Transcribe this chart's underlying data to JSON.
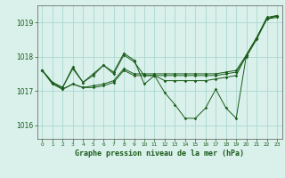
{
  "title": "Graphe pression niveau de la mer (hPa)",
  "background_color": "#daf0eb",
  "grid_color": "#aad8d0",
  "line_color": "#1a5c1a",
  "xlim": [
    -0.5,
    23.5
  ],
  "ylim": [
    1015.6,
    1019.5
  ],
  "yticks": [
    1016,
    1017,
    1018,
    1019
  ],
  "xticks": [
    0,
    1,
    2,
    3,
    4,
    5,
    6,
    7,
    8,
    9,
    10,
    11,
    12,
    13,
    14,
    15,
    16,
    17,
    18,
    19,
    20,
    21,
    22,
    23
  ],
  "lines": [
    {
      "x": [
        0,
        1,
        2,
        3,
        4,
        5,
        6,
        7,
        8,
        9,
        10,
        11,
        12,
        13,
        14,
        15,
        16,
        17,
        18,
        19,
        20,
        21,
        22,
        23
      ],
      "y": [
        1017.6,
        1017.25,
        1017.1,
        1017.65,
        1017.25,
        1017.45,
        1017.75,
        1017.5,
        1018.05,
        1017.85,
        1017.45,
        1017.45,
        1017.3,
        1017.3,
        1017.3,
        1017.3,
        1017.3,
        1017.35,
        1017.4,
        1017.45,
        1018.05,
        1018.55,
        1019.1,
        1019.2
      ]
    },
    {
      "x": [
        0,
        1,
        2,
        3,
        4,
        5,
        6,
        7,
        8,
        9,
        10,
        11,
        12,
        13,
        14,
        15,
        16,
        17,
        18,
        19,
        20,
        21,
        22,
        23
      ],
      "y": [
        1017.6,
        1017.25,
        1017.1,
        1017.7,
        1017.25,
        1017.5,
        1017.75,
        1017.55,
        1018.1,
        1017.9,
        1017.2,
        1017.45,
        1016.95,
        1016.6,
        1016.2,
        1016.2,
        1016.5,
        1017.05,
        1016.5,
        1016.2,
        1018.05,
        1018.55,
        1019.1,
        1019.2
      ]
    },
    {
      "x": [
        0,
        1,
        2,
        3,
        4,
        5,
        6,
        7,
        8,
        9,
        10,
        11,
        12,
        13,
        14,
        15,
        16,
        17,
        18,
        19,
        20,
        21,
        22,
        23
      ],
      "y": [
        1017.6,
        1017.25,
        1017.05,
        1017.2,
        1017.1,
        1017.15,
        1017.2,
        1017.3,
        1017.65,
        1017.5,
        1017.5,
        1017.5,
        1017.5,
        1017.5,
        1017.5,
        1017.5,
        1017.5,
        1017.5,
        1017.55,
        1017.6,
        1018.05,
        1018.55,
        1019.15,
        1019.2
      ]
    },
    {
      "x": [
        0,
        1,
        2,
        3,
        4,
        5,
        6,
        7,
        8,
        9,
        10,
        11,
        12,
        13,
        14,
        15,
        16,
        17,
        18,
        19,
        20,
        21,
        22,
        23
      ],
      "y": [
        1017.6,
        1017.2,
        1017.05,
        1017.2,
        1017.1,
        1017.1,
        1017.15,
        1017.25,
        1017.6,
        1017.45,
        1017.45,
        1017.45,
        1017.45,
        1017.45,
        1017.45,
        1017.45,
        1017.45,
        1017.45,
        1017.5,
        1017.55,
        1018.0,
        1018.5,
        1019.1,
        1019.15
      ]
    }
  ]
}
